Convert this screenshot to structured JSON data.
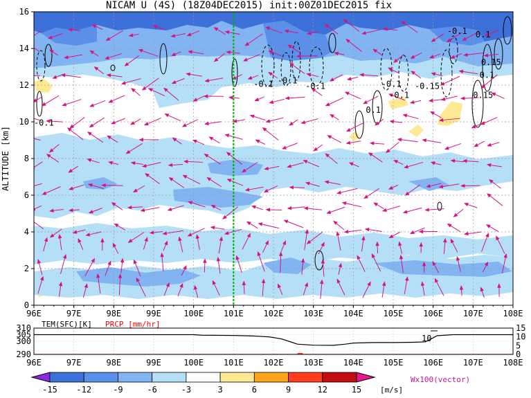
{
  "chart_data": [
    {
      "type": "heatmap",
      "title": "NICAM U (4S) (18Z04DEC2015) init:00Z01DEC2015 fix",
      "ylabel": "ALTITUDE [km]",
      "xlim": [
        96,
        108
      ],
      "ylim": [
        0,
        16
      ],
      "x_ticks": [
        "96E",
        "97E",
        "98E",
        "99E",
        "100E",
        "101E",
        "102E",
        "103E",
        "104E",
        "105E",
        "106E",
        "107E",
        "108E"
      ],
      "y_ticks": [
        "0",
        "2",
        "4",
        "6",
        "8",
        "10",
        "12",
        "14",
        "16"
      ],
      "grid": true,
      "marker_longitude": 101,
      "contour_labels": [
        {
          "text": "-0.1",
          "x": 96.25,
          "y": 9.8
        },
        {
          "text": "-0.1",
          "x": 101.75,
          "y": 11.9
        },
        {
          "text": "-0.1",
          "x": 102.35,
          "y": 12.1
        },
        {
          "text": "-0.1",
          "x": 103.05,
          "y": 11.8
        },
        {
          "text": "-0.1",
          "x": 104.95,
          "y": 11.9
        },
        {
          "text": "-0.1",
          "x": 105.15,
          "y": 11.3
        },
        {
          "text": "-0.15",
          "x": 105.85,
          "y": 11.8
        },
        {
          "text": "0.15",
          "x": 107.25,
          "y": 11.3
        },
        {
          "text": "0.1",
          "x": 104.5,
          "y": 10.5
        },
        {
          "text": "-0.1",
          "x": 106.6,
          "y": 14.8
        },
        {
          "text": "0.1",
          "x": 107.25,
          "y": 14.6
        },
        {
          "text": "0.15",
          "x": 107.45,
          "y": 13.1
        },
        {
          "text": "0.1",
          "x": 107.35,
          "y": 12.4
        }
      ]
    },
    {
      "type": "line",
      "legend": [
        {
          "label": "TEM(SFC)[K]",
          "color": "#000000"
        },
        {
          "label": "PRCP [mm/hr]",
          "color": "#ff0000"
        }
      ],
      "left_ticks": [
        "290",
        "300",
        "305",
        "310"
      ],
      "right_ticks": [
        "0",
        "5",
        "10",
        "15"
      ],
      "x_ticks": [
        "96E",
        "97E",
        "98E",
        "99E",
        "100E",
        "101E",
        "102E",
        "103E",
        "104E",
        "105E",
        "106E",
        "107E",
        "108E"
      ],
      "annotation": "10",
      "series": [
        {
          "name": "TEM(SFC)[K]",
          "x": [
            96,
            97,
            98,
            99,
            100,
            100.2,
            101,
            101.5,
            101.9,
            102.2,
            102.4,
            102.6,
            103,
            103.5,
            103.8,
            104,
            104.5,
            105,
            105.5,
            105.8,
            105.95,
            106.1,
            106.5,
            107,
            108
          ],
          "y": [
            305,
            305,
            305,
            305,
            305,
            304.6,
            304.4,
            304,
            303.3,
            301.8,
            299.8,
            297.8,
            297,
            296.9,
            297.8,
            298.6,
            299,
            299,
            299.2,
            299.5,
            301.8,
            304.2,
            305,
            305,
            305
          ]
        },
        {
          "name": "PRCP [mm/hr]",
          "x": [
            96,
            102.6,
            102.62,
            102.72,
            102.74,
            108
          ],
          "y": [
            0,
            0,
            0.5,
            0.5,
            0,
            0
          ]
        }
      ]
    }
  ],
  "colorbar": {
    "levels": [
      "-15",
      "-12",
      "-9",
      "-6",
      "-3",
      "3",
      "6",
      "9",
      "12",
      "15"
    ],
    "colors": [
      "#8a2be2",
      "#3d70d8",
      "#5a90ea",
      "#82b4f2",
      "#b4dff7",
      "#ffffff",
      "#fde992",
      "#ffa31c",
      "#ff3c1c",
      "#bf0d12",
      "#e8168f"
    ],
    "unit": "[m/s]",
    "vector_label": "Wx100(vector)",
    "vector_color": "#d4157f"
  }
}
